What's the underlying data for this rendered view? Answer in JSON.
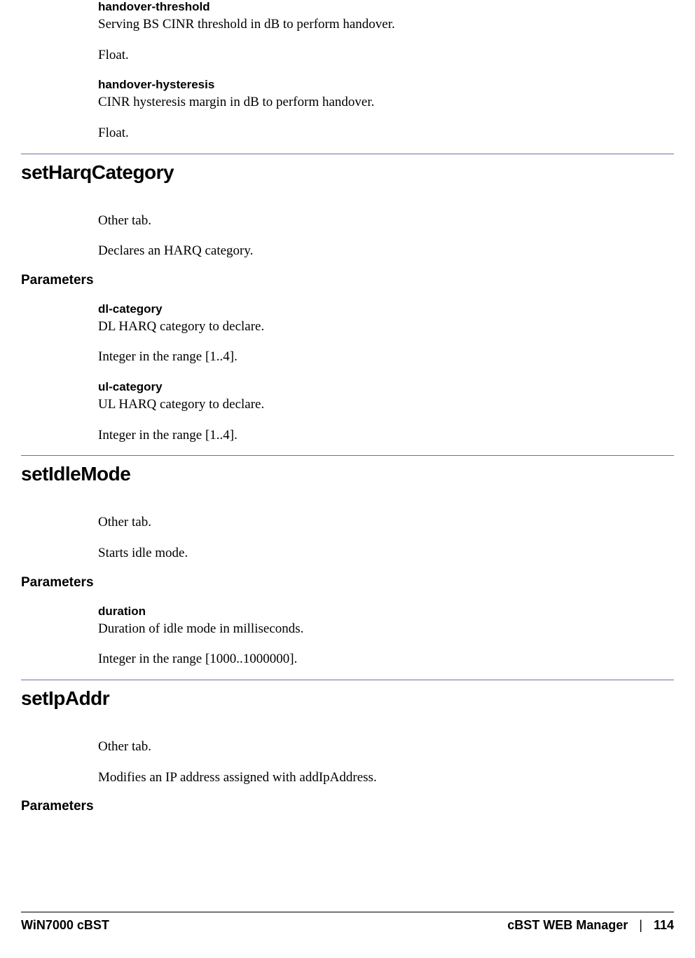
{
  "colors": {
    "section_rule": "#7070a0",
    "footer_rule": "#000000",
    "text": "#000000",
    "background": "#ffffff"
  },
  "typography": {
    "body_font": "Palatino Linotype",
    "heading_font": "Arial",
    "body_fontsize_pt": 14,
    "section_title_fontsize_pt": 21,
    "param_name_fontsize_pt": 13,
    "params_label_fontsize_pt": 14,
    "footer_fontsize_pt": 13
  },
  "pre": {
    "params": [
      {
        "name": "handover-threshold",
        "desc": "Serving BS CINR threshold in dB to perform handover.",
        "type": "Float."
      },
      {
        "name": "handover-hysteresis",
        "desc": "CINR hysteresis margin in dB to perform handover.",
        "type": "Float."
      }
    ]
  },
  "sections": [
    {
      "title": "setHarqCategory",
      "tab": "Other tab.",
      "summary": "Declares an HARQ category.",
      "params_label": "Parameters",
      "params": [
        {
          "name": "dl-category",
          "desc": "DL HARQ category to declare.",
          "type": "Integer in the range [1..4]."
        },
        {
          "name": "ul-category",
          "desc": "UL HARQ category to declare.",
          "type": "Integer in the range [1..4]."
        }
      ]
    },
    {
      "title": "setIdleMode",
      "tab": "Other tab.",
      "summary": "Starts idle mode.",
      "params_label": "Parameters",
      "params": [
        {
          "name": "duration",
          "desc": "Duration of idle mode in milliseconds.",
          "type": "Integer in the range [1000..1000000]."
        }
      ]
    },
    {
      "title": "setIpAddr",
      "tab": "Other tab.",
      "summary": "Modifies an IP address assigned with addIpAddress.",
      "params_label": "Parameters",
      "params": []
    }
  ],
  "footer": {
    "left": "WiN7000 cBST",
    "right_label": "cBST WEB Manager",
    "separator": "|",
    "page_number": "114"
  }
}
